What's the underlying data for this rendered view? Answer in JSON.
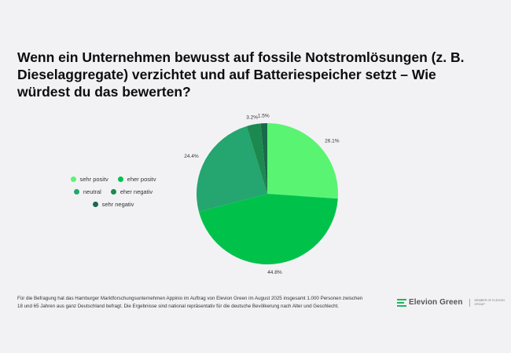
{
  "title": "Wenn ein Unternehmen bewusst auf fossile Notstromlösungen (z. B. Dieselaggregate) verzichtet und auf Batteriespeicher setzt – Wie würdest du das bewerten?",
  "chart_data": {
    "type": "pie",
    "title": "Wenn ein Unternehmen bewusst auf fossile Notstromlösungen (z. B. Dieselaggregate) verzichtet und auf Batteriespeicher setzt – Wie würdest du das bewerten?",
    "categories": [
      "sehr positv",
      "eher positv",
      "neutral",
      "eher negativ",
      "sehr negativ"
    ],
    "values": [
      26.1,
      44.8,
      24.4,
      3.2,
      1.5
    ],
    "value_labels": [
      "26.1%",
      "44.8%",
      "24.4%",
      "3.2%",
      "1.5%"
    ],
    "colors": [
      "#5af473",
      "#00c24b",
      "#25a570",
      "#1c8a4f",
      "#196a4b"
    ],
    "legend_position": "left"
  },
  "footnote": "Für die Befragung hat das Hamburger Marktforschungsunternehmen Appinio im Auftrag von Elevion Green im August 2025 insgesamt 1.000 Personen zwischen 18 und 65 Jahren aus ganz Deutschland befragt. Die Ergebnisse sind national repräsentativ für die deutsche Bevölkerung nach Alter und Geschlecht.",
  "logo": {
    "name": "Elevion Green",
    "subline": "MEMBER OF ELEVION GROUP"
  }
}
